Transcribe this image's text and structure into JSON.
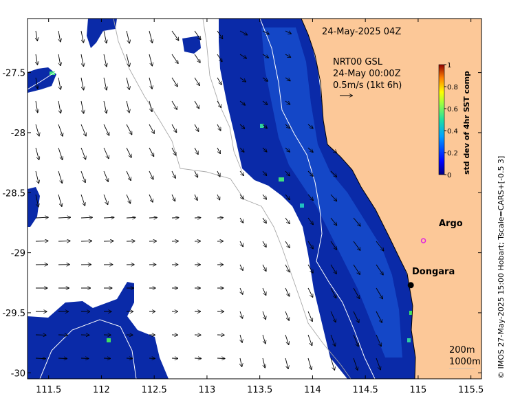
{
  "map": {
    "title": "24-May-2025 04Z",
    "current_source": "NRT00 GSL",
    "current_time": "24-May 00:00Z",
    "arrow_scale_label": "0.5m/s (1kt 6h)",
    "credit": "© IMOS 27-May-2025 15:00 Hobart; Tscale=CARS+[-0.5 3]",
    "depth_contours": [
      "200m",
      "1000m"
    ],
    "lon_ticks": [
      "111.5",
      "112",
      "112.5",
      "113",
      "113.5",
      "114",
      "114.5",
      "115",
      "115.5"
    ],
    "lat_ticks": [
      "-27.5",
      "-28",
      "-28.5",
      "-29",
      "-29.5",
      "-30"
    ],
    "lon_range": [
      111.3,
      115.6
    ],
    "lat_range": [
      -30.05,
      -27.05
    ]
  },
  "places": [
    {
      "name": "Dongara",
      "lon": 114.93,
      "lat": -29.27,
      "type": "town"
    },
    {
      "name": "Argo",
      "lon": 115.05,
      "lat": -28.9,
      "type": "float",
      "color": "#e020e0"
    }
  ],
  "colorbar": {
    "title": "std dev of 4hr SST comp",
    "ticks": [
      "0",
      "0.2",
      "0.4",
      "0.6",
      "0.8",
      "1"
    ],
    "range": [
      0,
      1
    ],
    "colors": [
      "#00007f",
      "#0000ff",
      "#007fff",
      "#00ffff",
      "#7fff7f",
      "#ffff00",
      "#ff7f00",
      "#ff0000",
      "#7f0000"
    ]
  },
  "colors": {
    "land": "#fcc898",
    "ocean_low": "#0a2aa8",
    "no_data": "#ffffff",
    "coast": "#000000"
  }
}
